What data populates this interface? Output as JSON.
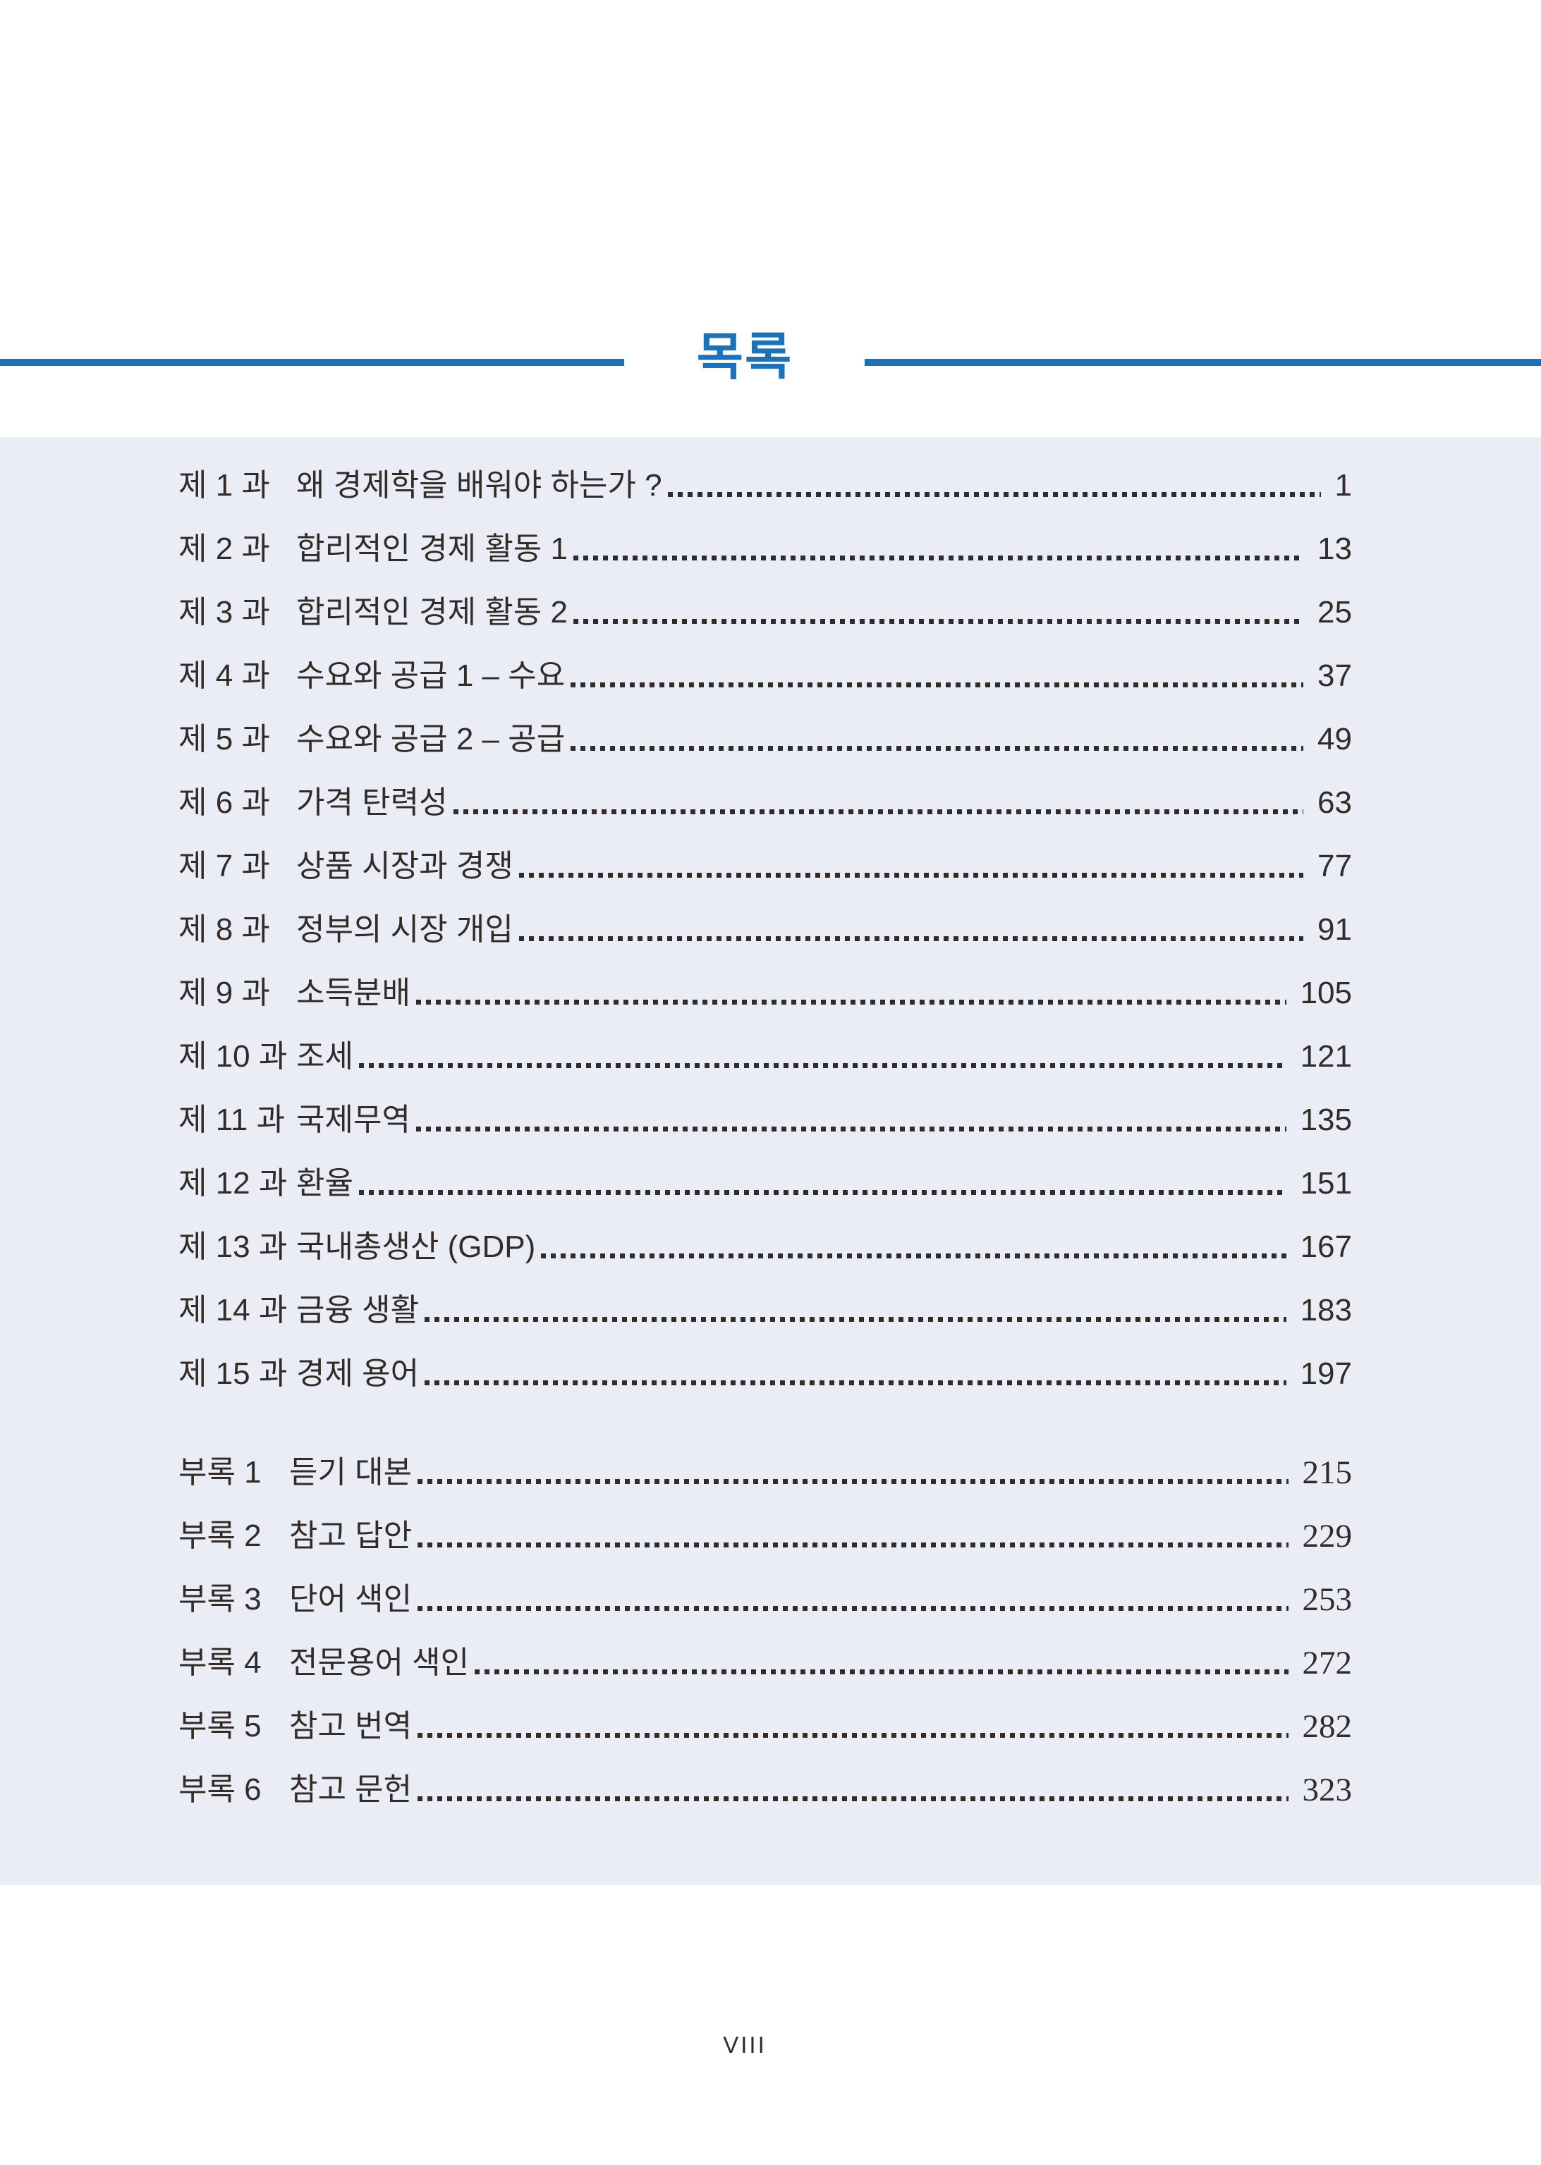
{
  "page": {
    "title": "목록",
    "footer_page_number": "VIII"
  },
  "theme": {
    "accent_color": "#1b72b8",
    "panel_color": "#eaedf6",
    "text_color": "#332b28"
  },
  "toc": {
    "chapters": [
      {
        "label": "제 1 과",
        "title": "왜 경제학을 배워야 하는가 ?",
        "page": "1"
      },
      {
        "label": "제 2 과",
        "title": "합리적인 경제 활동 1",
        "page": "13"
      },
      {
        "label": "제 3 과",
        "title": "합리적인 경제 활동 2",
        "page": "25"
      },
      {
        "label": "제 4 과",
        "title": "수요와 공급 1 – 수요",
        "page": "37"
      },
      {
        "label": "제 5 과",
        "title": "수요와 공급 2 – 공급",
        "page": "49"
      },
      {
        "label": "제 6 과",
        "title": "가격 탄력성",
        "page": "63"
      },
      {
        "label": "제 7 과",
        "title": "상품 시장과 경쟁",
        "page": "77"
      },
      {
        "label": "제 8 과",
        "title": "정부의 시장 개입",
        "page": "91"
      },
      {
        "label": "제 9 과",
        "title": "소득분배",
        "page": "105"
      },
      {
        "label": "제 10 과",
        "title": "조세",
        "page": "121"
      },
      {
        "label": "제 11 과",
        "title": "국제무역",
        "page": "135"
      },
      {
        "label": "제 12 과",
        "title": "환율",
        "page": "151"
      },
      {
        "label": "제 13 과",
        "title": "국내총생산 (GDP)",
        "page": "167"
      },
      {
        "label": "제 14 과",
        "title": "금융 생활",
        "page": "183"
      },
      {
        "label": "제 15 과",
        "title": "경제 용어",
        "page": "197"
      }
    ],
    "appendices": [
      {
        "label": "부록 1",
        "title": "듣기 대본",
        "page": "215"
      },
      {
        "label": "부록 2",
        "title": "참고 답안",
        "page": "229"
      },
      {
        "label": "부록 3",
        "title": "단어 색인",
        "page": "253"
      },
      {
        "label": "부록 4",
        "title": "전문용어 색인",
        "page": "272"
      },
      {
        "label": "부록 5",
        "title": "참고 번역",
        "page": "282"
      },
      {
        "label": "부록 6",
        "title": "참고 문헌",
        "page": "323"
      }
    ]
  }
}
